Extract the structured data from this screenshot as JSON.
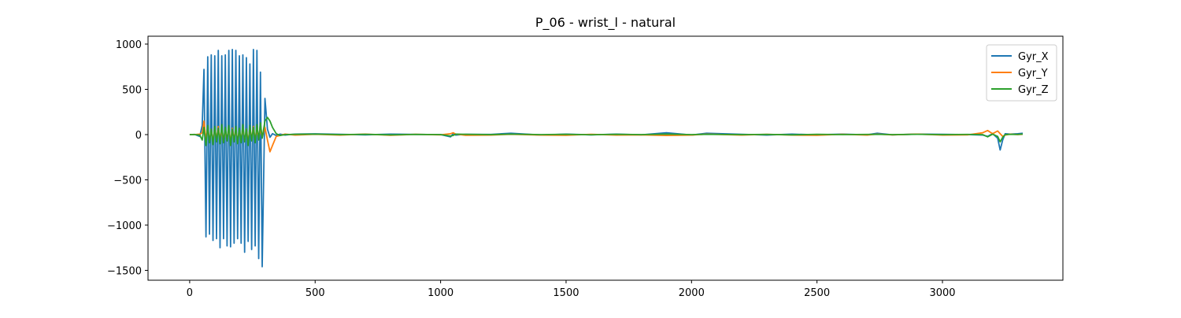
{
  "chart_data": {
    "type": "line",
    "title": "P_06 - wrist_l - natural",
    "x": [
      0,
      20,
      40,
      50,
      57,
      65,
      72,
      79,
      86,
      93,
      100,
      107,
      114,
      121,
      128,
      135,
      142,
      149,
      156,
      163,
      170,
      177,
      184,
      191,
      198,
      205,
      212,
      219,
      226,
      233,
      240,
      247,
      254,
      261,
      268,
      275,
      282,
      289,
      300,
      310,
      320,
      330,
      345,
      360,
      380,
      420,
      500,
      600,
      700,
      800,
      900,
      1000,
      1040,
      1050,
      1060,
      1100,
      1200,
      1280,
      1400,
      1500,
      1600,
      1700,
      1800,
      1900,
      2000,
      2060,
      2200,
      2300,
      2400,
      2500,
      2600,
      2700,
      2740,
      2800,
      2900,
      3000,
      3100,
      3160,
      3180,
      3200,
      3220,
      3230,
      3240,
      3250,
      3270,
      3300,
      3320
    ],
    "series": [
      {
        "name": "Gyr_X",
        "color": "#1f77b4",
        "values": [
          0,
          2,
          -20,
          100,
          720,
          -1130,
          860,
          -1100,
          880,
          -1170,
          870,
          -1150,
          930,
          -1250,
          870,
          -1150,
          880,
          -1230,
          930,
          -1240,
          940,
          -1200,
          930,
          -1150,
          870,
          -1200,
          880,
          -1300,
          850,
          -1180,
          780,
          -1270,
          940,
          -1230,
          930,
          -1370,
          690,
          -1460,
          400,
          60,
          -30,
          10,
          -10,
          5,
          -5,
          5,
          8,
          3,
          -3,
          5,
          2,
          0,
          -25,
          10,
          -5,
          3,
          2,
          15,
          -5,
          5,
          -3,
          5,
          -2,
          20,
          -5,
          15,
          3,
          -5,
          5,
          -3,
          5,
          -2,
          15,
          -3,
          5,
          3,
          0,
          -5,
          -20,
          10,
          -40,
          -170,
          -60,
          10,
          5,
          10,
          15
        ]
      },
      {
        "name": "Gyr_Y",
        "color": "#ff7f0e",
        "values": [
          0,
          0,
          5,
          20,
          150,
          -60,
          80,
          -70,
          60,
          -80,
          70,
          -60,
          90,
          -70,
          60,
          -80,
          50,
          -60,
          80,
          -90,
          70,
          -50,
          60,
          -70,
          50,
          -60,
          80,
          -70,
          60,
          -80,
          70,
          -50,
          90,
          -60,
          50,
          -40,
          60,
          -30,
          80,
          -60,
          -190,
          -120,
          -20,
          -10,
          5,
          -5,
          3,
          -5,
          5,
          -8,
          3,
          -3,
          10,
          20,
          5,
          -8,
          -5,
          3,
          -5,
          -8,
          3,
          -5,
          -3,
          -10,
          -5,
          5,
          -5,
          3,
          -5,
          -8,
          3,
          -5,
          5,
          -3,
          5,
          -5,
          -3,
          20,
          45,
          10,
          40,
          10,
          -20,
          -5,
          5,
          0,
          3
        ]
      },
      {
        "name": "Gyr_Z",
        "color": "#2ca02c",
        "values": [
          0,
          0,
          -5,
          -60,
          80,
          -120,
          100,
          -90,
          60,
          -110,
          90,
          -80,
          70,
          -100,
          110,
          -90,
          80,
          -70,
          100,
          -120,
          60,
          -80,
          90,
          -100,
          70,
          -90,
          110,
          -80,
          60,
          -120,
          100,
          -70,
          80,
          -90,
          110,
          -60,
          130,
          -40,
          150,
          190,
          150,
          80,
          10,
          -10,
          0,
          3,
          5,
          0,
          3,
          -3,
          2,
          0,
          -15,
          -10,
          5,
          3,
          0,
          5,
          0,
          3,
          -2,
          3,
          0,
          5,
          0,
          3,
          0,
          2,
          -3,
          3,
          0,
          2,
          3,
          0,
          3,
          0,
          2,
          0,
          -25,
          5,
          -20,
          -80,
          -30,
          0,
          3,
          2,
          5
        ]
      }
    ],
    "xlim": [
      -166,
      3480
    ],
    "ylim": [
      -1609,
      1087
    ],
    "xticks": [
      0,
      500,
      1000,
      1500,
      2000,
      2500,
      3000
    ],
    "yticks": [
      {
        "value": -1500,
        "label": "−1500"
      },
      {
        "value": -1000,
        "label": "−1000"
      },
      {
        "value": -500,
        "label": "−500"
      },
      0,
      500,
      1000
    ],
    "legend": "upper right",
    "grid": false
  }
}
